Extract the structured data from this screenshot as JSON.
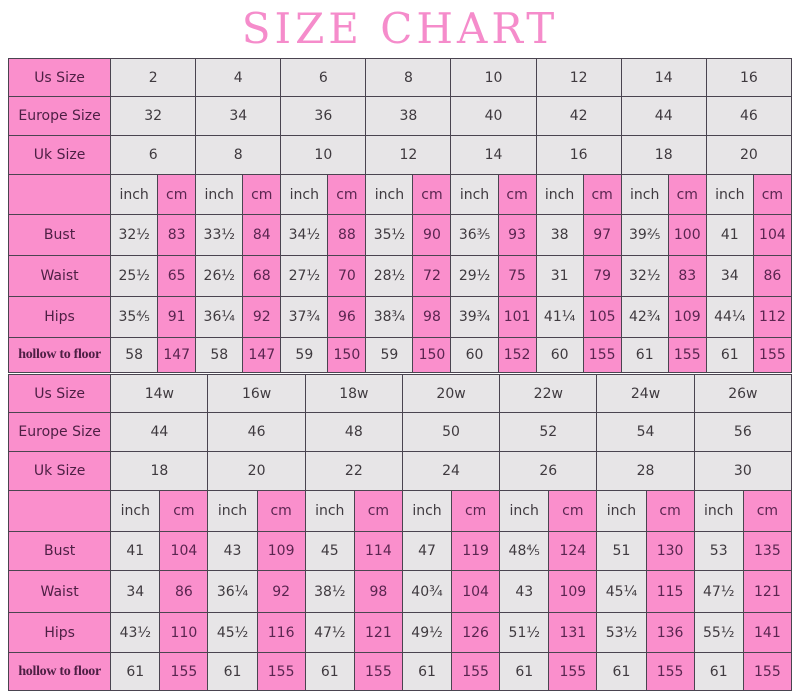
{
  "title": "SIZE CHART",
  "colors": {
    "pink": "#fa8fcc",
    "grey": "#e7e5e7",
    "title": "#f58ccb"
  },
  "tables": [
    {
      "labels": {
        "us": "Us Size",
        "europe": "Europe Size",
        "uk": "Uk Size",
        "bust": "Bust",
        "waist": "Waist",
        "hips": "Hips",
        "hollow": "hollow to floor"
      },
      "units": {
        "inch": "inch",
        "cm": "cm"
      },
      "us": [
        "2",
        "4",
        "6",
        "8",
        "10",
        "12",
        "14",
        "16"
      ],
      "europe": [
        "32",
        "34",
        "36",
        "38",
        "40",
        "42",
        "44",
        "46"
      ],
      "uk": [
        "6",
        "8",
        "10",
        "12",
        "14",
        "16",
        "18",
        "20"
      ],
      "bust": [
        [
          "32½",
          "83"
        ],
        [
          "33½",
          "84"
        ],
        [
          "34½",
          "88"
        ],
        [
          "35½",
          "90"
        ],
        [
          "36³⁄₅",
          "93"
        ],
        [
          "38",
          "97"
        ],
        [
          "39²⁄₅",
          "100"
        ],
        [
          "41",
          "104"
        ]
      ],
      "waist": [
        [
          "25½",
          "65"
        ],
        [
          "26½",
          "68"
        ],
        [
          "27½",
          "70"
        ],
        [
          "28½",
          "72"
        ],
        [
          "29½",
          "75"
        ],
        [
          "31",
          "79"
        ],
        [
          "32½",
          "83"
        ],
        [
          "34",
          "86"
        ]
      ],
      "hips": [
        [
          "35⁴⁄₅",
          "91"
        ],
        [
          "36¼",
          "92"
        ],
        [
          "37¾",
          "96"
        ],
        [
          "38¾",
          "98"
        ],
        [
          "39¾",
          "101"
        ],
        [
          "41¼",
          "105"
        ],
        [
          "42¾",
          "109"
        ],
        [
          "44¼",
          "112"
        ]
      ],
      "hollow": [
        [
          "58",
          "147"
        ],
        [
          "58",
          "147"
        ],
        [
          "59",
          "150"
        ],
        [
          "59",
          "150"
        ],
        [
          "60",
          "152"
        ],
        [
          "60",
          "155"
        ],
        [
          "61",
          "155"
        ],
        [
          "61",
          "155"
        ]
      ]
    },
    {
      "labels": {
        "us": "Us Size",
        "europe": "Europe Size",
        "uk": "Uk Size",
        "bust": "Bust",
        "waist": "Waist",
        "hips": "Hips",
        "hollow": "hollow to floor"
      },
      "units": {
        "inch": "inch",
        "cm": "cm"
      },
      "us": [
        "14w",
        "16w",
        "18w",
        "20w",
        "22w",
        "24w",
        "26w"
      ],
      "europe": [
        "44",
        "46",
        "48",
        "50",
        "52",
        "54",
        "56"
      ],
      "uk": [
        "18",
        "20",
        "22",
        "24",
        "26",
        "28",
        "30"
      ],
      "bust": [
        [
          "41",
          "104"
        ],
        [
          "43",
          "109"
        ],
        [
          "45",
          "114"
        ],
        [
          "47",
          "119"
        ],
        [
          "48⁴⁄₅",
          "124"
        ],
        [
          "51",
          "130"
        ],
        [
          "53",
          "135"
        ]
      ],
      "waist": [
        [
          "34",
          "86"
        ],
        [
          "36¼",
          "92"
        ],
        [
          "38½",
          "98"
        ],
        [
          "40¾",
          "104"
        ],
        [
          "43",
          "109"
        ],
        [
          "45¼",
          "115"
        ],
        [
          "47½",
          "121"
        ]
      ],
      "hips": [
        [
          "43¹⁄₂",
          "110"
        ],
        [
          "45½",
          "116"
        ],
        [
          "47½",
          "121"
        ],
        [
          "49½",
          "126"
        ],
        [
          "51½",
          "131"
        ],
        [
          "53½",
          "136"
        ],
        [
          "55½",
          "141"
        ]
      ],
      "hollow": [
        [
          "61",
          "155"
        ],
        [
          "61",
          "155"
        ],
        [
          "61",
          "155"
        ],
        [
          "61",
          "155"
        ],
        [
          "61",
          "155"
        ],
        [
          "61",
          "155"
        ],
        [
          "61",
          "155"
        ]
      ]
    }
  ]
}
